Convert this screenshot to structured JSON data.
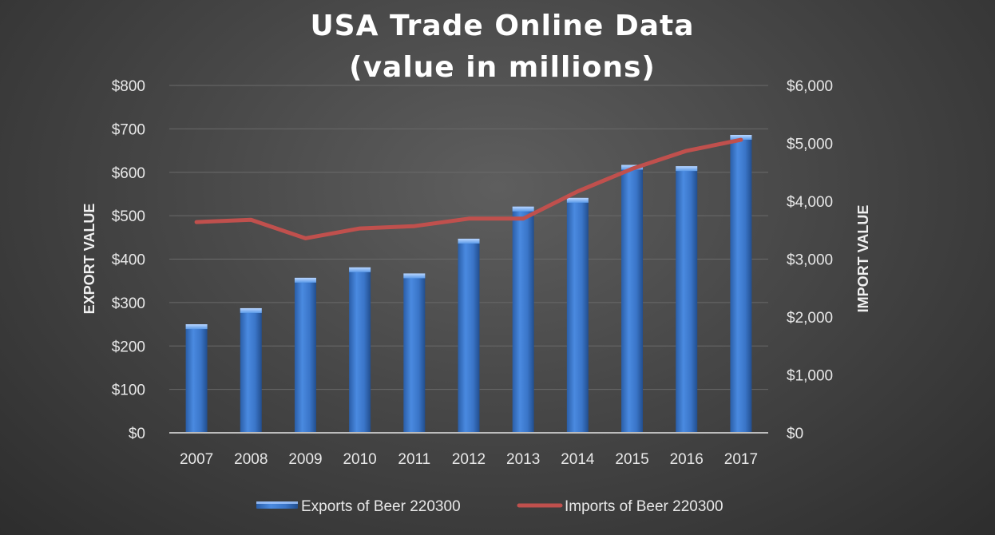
{
  "chart_data": {
    "type": "bar",
    "title_lines": [
      "USA Trade Online Data",
      "(value in millions)"
    ],
    "categories": [
      "2007",
      "2008",
      "2009",
      "2010",
      "2011",
      "2012",
      "2013",
      "2014",
      "2015",
      "2016",
      "2017"
    ],
    "series": [
      {
        "name": "Exports of Beer 220300",
        "type": "bar",
        "axis": "left",
        "color": "#3f7fd6",
        "values": [
          250,
          287,
          357,
          381,
          367,
          447,
          521,
          541,
          617,
          614,
          686
        ]
      },
      {
        "name": "Imports of Beer 220300",
        "type": "line",
        "axis": "right",
        "color": "#c0504d",
        "values": [
          3640,
          3680,
          3360,
          3530,
          3570,
          3700,
          3700,
          4170,
          4560,
          4870,
          5060
        ]
      }
    ],
    "y_left": {
      "label": "EXPORT VALUE",
      "min": 0,
      "max": 800,
      "ticks": [
        0,
        100,
        200,
        300,
        400,
        500,
        600,
        700,
        800
      ],
      "tick_labels": [
        "$0",
        "$100",
        "$200",
        "$300",
        "$400",
        "$500",
        "$600",
        "$700",
        "$800"
      ]
    },
    "y_right": {
      "label": "IMPORT VALUE",
      "min": 0,
      "max": 6000,
      "ticks": [
        0,
        1000,
        2000,
        3000,
        4000,
        5000,
        6000
      ],
      "tick_labels": [
        "$0",
        "$1,000",
        "$2,000",
        "$3,000",
        "$4,000",
        "$5,000",
        "$6,000"
      ]
    },
    "grid": true,
    "legend_position": "bottom",
    "background_color": "#474747",
    "text_color": "#e8e8e8",
    "gridline_color": "#6a6a6a"
  }
}
